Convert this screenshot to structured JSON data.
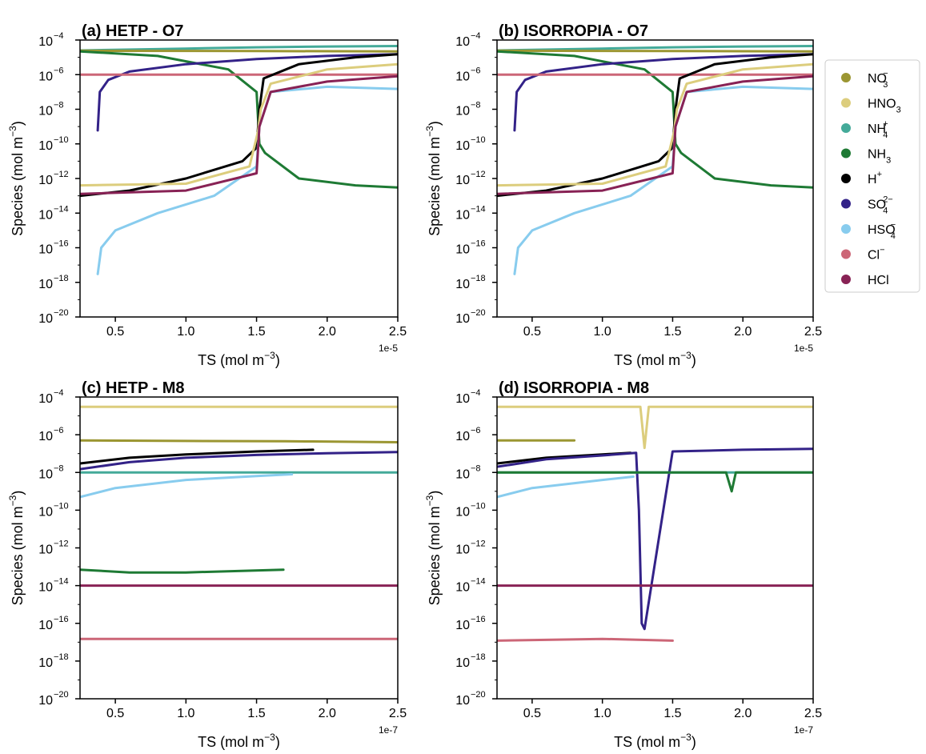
{
  "x_axis_label": "TS (mol m",
  "x_axis_label_exp": "−3",
  "x_axis_label_close": ")",
  "y_axis_label": "Species (mol m",
  "y_axis_label_exp": "−3",
  "y_axis_label_close": ")",
  "legend": [
    {
      "key": "NO3-",
      "base": "NO",
      "sub": "3",
      "sup": "−",
      "color": "#9b9632"
    },
    {
      "key": "HNO3",
      "base": "HNO",
      "sub": "3",
      "sup": "",
      "color": "#dccd7d"
    },
    {
      "key": "NH4+",
      "base": "NH",
      "sub": "4",
      "sup": "+",
      "color": "#44aa99"
    },
    {
      "key": "NH3",
      "base": "NH",
      "sub": "3",
      "sup": "",
      "color": "#1e7a34"
    },
    {
      "key": "H+",
      "base": "H",
      "sub": "",
      "sup": "+",
      "color": "#000000"
    },
    {
      "key": "SO4 2-",
      "base": "SO",
      "sub": "4",
      "sup": "2−",
      "color": "#332288"
    },
    {
      "key": "HSO4-",
      "base": "HSO",
      "sub": "4",
      "sup": "−",
      "color": "#88ccee"
    },
    {
      "key": "Cl-",
      "base": "Cl",
      "sub": "",
      "sup": "−",
      "color": "#cc6677"
    },
    {
      "key": "HCl",
      "base": "HCl",
      "sub": "",
      "sup": "",
      "color": "#882255"
    }
  ],
  "chart_data": [
    {
      "id": "a",
      "type": "scatter",
      "title": "(a) HETP - O7",
      "x_offset_label": "1e-5",
      "x_scale": 1e-05,
      "xticks": [
        "0.5",
        "1.0",
        "1.5",
        "2.0",
        "2.5"
      ],
      "xlim": [
        0.25,
        2.5
      ],
      "yscale": "log",
      "ylim": [
        1e-20,
        0.0001
      ],
      "series": [
        {
          "name": "NH4+",
          "x": [
            0.25,
            1.0,
            1.5,
            2.0,
            2.5
          ],
          "y": [
            2.5e-05,
            3.2e-05,
            3.8e-05,
            4.2e-05,
            4.5e-05
          ]
        },
        {
          "name": "NO3-",
          "x": [
            0.25,
            1.5,
            2.5
          ],
          "y": [
            2.4e-05,
            2.3e-05,
            2.2e-05
          ]
        },
        {
          "name": "NH3",
          "x": [
            0.25,
            0.8,
            1.3,
            1.5,
            1.52,
            1.56,
            1.8,
            2.2,
            2.5
          ],
          "y": [
            2.2e-05,
            1.2e-05,
            2e-06,
            1e-07,
            1e-10,
            3e-11,
            1e-12,
            4e-13,
            3e-13
          ]
        },
        {
          "name": "SO4 2-",
          "x": [
            0.375,
            0.39,
            0.45,
            0.6,
            1.0,
            1.5,
            2.0,
            2.5
          ],
          "y": [
            6e-10,
            1e-07,
            5e-07,
            1.5e-06,
            4e-06,
            8e-06,
            1.2e-05,
            1.5e-05
          ]
        },
        {
          "name": "Cl-",
          "x": [
            0.25,
            1.5,
            2.5
          ],
          "y": [
            1e-06,
            1e-06,
            1e-06
          ]
        },
        {
          "name": "H+",
          "x": [
            0.25,
            0.6,
            1.0,
            1.4,
            1.5,
            1.52,
            1.55,
            1.8,
            2.2,
            2.5
          ],
          "y": [
            1e-13,
            2e-13,
            1e-12,
            1e-11,
            6e-11,
            1e-08,
            6e-07,
            4e-06,
            1e-05,
            1.5e-05
          ]
        },
        {
          "name": "HNO3",
          "x": [
            0.25,
            1.0,
            1.45,
            1.51,
            1.53,
            1.6,
            2.0,
            2.5
          ],
          "y": [
            4e-13,
            5e-13,
            5e-12,
            5e-10,
            1e-08,
            3e-07,
            2e-06,
            4e-06
          ]
        },
        {
          "name": "HSO4-",
          "x": [
            0.375,
            0.4,
            0.5,
            0.8,
            1.2,
            1.5,
            1.52,
            1.6,
            2.0,
            2.5
          ],
          "y": [
            3e-18,
            1e-16,
            1e-15,
            1e-14,
            1e-13,
            5e-12,
            1e-09,
            1e-07,
            2e-07,
            1.5e-07
          ]
        },
        {
          "name": "HCl",
          "x": [
            0.25,
            1.0,
            1.5,
            1.52,
            1.6,
            2.0,
            2.5
          ],
          "y": [
            1.3e-13,
            2e-13,
            2e-12,
            1e-09,
            1e-07,
            4e-07,
            8e-07
          ]
        }
      ]
    },
    {
      "id": "b",
      "type": "scatter",
      "title": "(b) ISORROPIA - O7",
      "x_offset_label": "1e-5",
      "x_scale": 1e-05,
      "xticks": [
        "0.5",
        "1.0",
        "1.5",
        "2.0",
        "2.5"
      ],
      "xlim": [
        0.25,
        2.5
      ],
      "yscale": "log",
      "ylim": [
        1e-20,
        0.0001
      ],
      "series": [
        {
          "name": "NH4+",
          "x": [
            0.25,
            1.0,
            1.5,
            2.0,
            2.5
          ],
          "y": [
            2.5e-05,
            3.2e-05,
            3.8e-05,
            4.2e-05,
            4.5e-05
          ]
        },
        {
          "name": "NO3-",
          "x": [
            0.25,
            1.5,
            2.5
          ],
          "y": [
            2.4e-05,
            2.3e-05,
            2.2e-05
          ]
        },
        {
          "name": "NH3",
          "x": [
            0.25,
            0.8,
            1.3,
            1.5,
            1.52,
            1.56,
            1.8,
            2.2,
            2.5
          ],
          "y": [
            2.2e-05,
            1.2e-05,
            2e-06,
            1e-07,
            1e-10,
            3e-11,
            1e-12,
            4e-13,
            3e-13
          ]
        },
        {
          "name": "SO4 2-",
          "x": [
            0.375,
            0.39,
            0.45,
            0.6,
            1.0,
            1.5,
            2.0,
            2.5
          ],
          "y": [
            6e-10,
            1e-07,
            5e-07,
            1.5e-06,
            4e-06,
            8e-06,
            1.2e-05,
            1.5e-05
          ]
        },
        {
          "name": "Cl-",
          "x": [
            0.25,
            1.5,
            2.5
          ],
          "y": [
            1e-06,
            1e-06,
            1e-06
          ]
        },
        {
          "name": "H+",
          "x": [
            0.25,
            0.6,
            1.0,
            1.4,
            1.5,
            1.52,
            1.55,
            1.8,
            2.2,
            2.5
          ],
          "y": [
            1e-13,
            2e-13,
            1e-12,
            1e-11,
            6e-11,
            1e-08,
            6e-07,
            4e-06,
            1e-05,
            1.5e-05
          ]
        },
        {
          "name": "HNO3",
          "x": [
            0.25,
            1.0,
            1.45,
            1.51,
            1.53,
            1.6,
            2.0,
            2.5
          ],
          "y": [
            4e-13,
            5e-13,
            5e-12,
            5e-10,
            1e-08,
            3e-07,
            2e-06,
            4e-06
          ]
        },
        {
          "name": "HSO4-",
          "x": [
            0.375,
            0.4,
            0.5,
            0.8,
            1.2,
            1.5,
            1.52,
            1.6,
            2.0,
            2.5
          ],
          "y": [
            3e-18,
            1e-16,
            1e-15,
            1e-14,
            1e-13,
            5e-12,
            1e-09,
            1e-07,
            2e-07,
            1.5e-07
          ]
        },
        {
          "name": "HCl",
          "x": [
            0.25,
            1.0,
            1.5,
            1.52,
            1.6,
            2.0,
            2.5
          ],
          "y": [
            1.3e-13,
            2e-13,
            2e-12,
            1e-09,
            1e-07,
            4e-07,
            8e-07
          ]
        }
      ]
    },
    {
      "id": "c",
      "type": "scatter",
      "title": "(c) HETP - M8",
      "x_offset_label": "1e-7",
      "x_scale": 1e-07,
      "xticks": [
        "0.5",
        "1.0",
        "1.5",
        "2.0",
        "2.5"
      ],
      "xlim": [
        0.25,
        2.5
      ],
      "yscale": "log",
      "ylim": [
        1e-20,
        0.0001
      ],
      "series": [
        {
          "name": "HNO3",
          "x": [
            0.25,
            2.5
          ],
          "y": [
            3e-05,
            3e-05
          ]
        },
        {
          "name": "NO3-",
          "x": [
            0.25,
            1.0,
            1.7,
            1.9,
            2.2,
            2.5
          ],
          "y": [
            5e-07,
            4.7e-07,
            4.5e-07,
            4.4e-07,
            4.2e-07,
            4e-07
          ]
        },
        {
          "name": "H+",
          "x": [
            0.25,
            0.6,
            1.0,
            1.5,
            1.9
          ],
          "y": [
            3e-08,
            6e-08,
            9e-08,
            1.3e-07,
            1.6e-07
          ]
        },
        {
          "name": "SO4 2-",
          "x": [
            0.25,
            0.6,
            1.0,
            1.5,
            2.0,
            2.5
          ],
          "y": [
            1.5e-08,
            3.5e-08,
            6e-08,
            8.5e-08,
            1.05e-07,
            1.2e-07
          ]
        },
        {
          "name": "NH4+",
          "x": [
            0.25,
            2.5
          ],
          "y": [
            1e-08,
            1e-08
          ]
        },
        {
          "name": "HSO4-",
          "x": [
            0.25,
            0.5,
            1.0,
            1.5,
            1.75
          ],
          "y": [
            5e-10,
            1.5e-09,
            4e-09,
            6.5e-09,
            8e-09
          ]
        },
        {
          "name": "NH3",
          "x": [
            0.25,
            0.6,
            1.0,
            1.69
          ],
          "y": [
            7e-14,
            5e-14,
            5e-14,
            7e-14
          ]
        },
        {
          "name": "HCl",
          "x": [
            0.25,
            2.5
          ],
          "y": [
            1e-14,
            1e-14
          ]
        },
        {
          "name": "Cl-",
          "x": [
            0.25,
            1.69,
            2.27,
            2.5
          ],
          "y": [
            1.5e-17,
            1.5e-17,
            1.5e-17,
            1.5e-17
          ]
        }
      ]
    },
    {
      "id": "d",
      "type": "scatter",
      "title": "(d) ISORROPIA - M8",
      "x_offset_label": "1e-7",
      "x_scale": 1e-07,
      "xticks": [
        "0.5",
        "1.0",
        "1.5",
        "2.0",
        "2.5"
      ],
      "xlim": [
        0.25,
        2.5
      ],
      "yscale": "log",
      "ylim": [
        1e-20,
        0.0001
      ],
      "series": [
        {
          "name": "HNO3",
          "x": [
            0.25,
            1.27,
            1.3,
            1.33,
            2.5
          ],
          "y": [
            3e-05,
            3e-05,
            2e-07,
            3e-05,
            3e-05
          ]
        },
        {
          "name": "NO3-",
          "x": [
            0.25,
            0.8
          ],
          "y": [
            5e-07,
            5e-07
          ]
        },
        {
          "name": "H+",
          "x": [
            0.25,
            0.6,
            1.0,
            1.2
          ],
          "y": [
            3e-08,
            6e-08,
            9e-08,
            1.1e-07
          ]
        },
        {
          "name": "SO4 2-",
          "x": [
            0.25,
            0.6,
            1.0,
            1.24,
            1.26,
            1.28,
            1.3,
            1.5,
            2.0,
            2.5
          ],
          "y": [
            2e-08,
            5e-08,
            8e-08,
            1.1e-07,
            1e-10,
            1e-16,
            5e-17,
            1.3e-07,
            1.6e-07,
            1.8e-07
          ]
        },
        {
          "name": "NH4+",
          "x": [
            0.25,
            2.5
          ],
          "y": [
            1e-08,
            1e-08
          ]
        },
        {
          "name": "NH3",
          "x": [
            0.25,
            1.88,
            1.92,
            1.95,
            2.5
          ],
          "y": [
            1e-08,
            1e-08,
            1e-09,
            1e-08,
            1e-08
          ]
        },
        {
          "name": "HSO4-",
          "x": [
            0.25,
            0.5,
            1.0,
            1.22
          ],
          "y": [
            5e-10,
            1.5e-09,
            4e-09,
            6e-09
          ]
        },
        {
          "name": "HCl",
          "x": [
            0.25,
            2.5
          ],
          "y": [
            1e-14,
            1e-14
          ]
        },
        {
          "name": "Cl-",
          "x": [
            0.25,
            1.0,
            1.5
          ],
          "y": [
            1.2e-17,
            1.5e-17,
            1.2e-17
          ]
        }
      ]
    }
  ]
}
